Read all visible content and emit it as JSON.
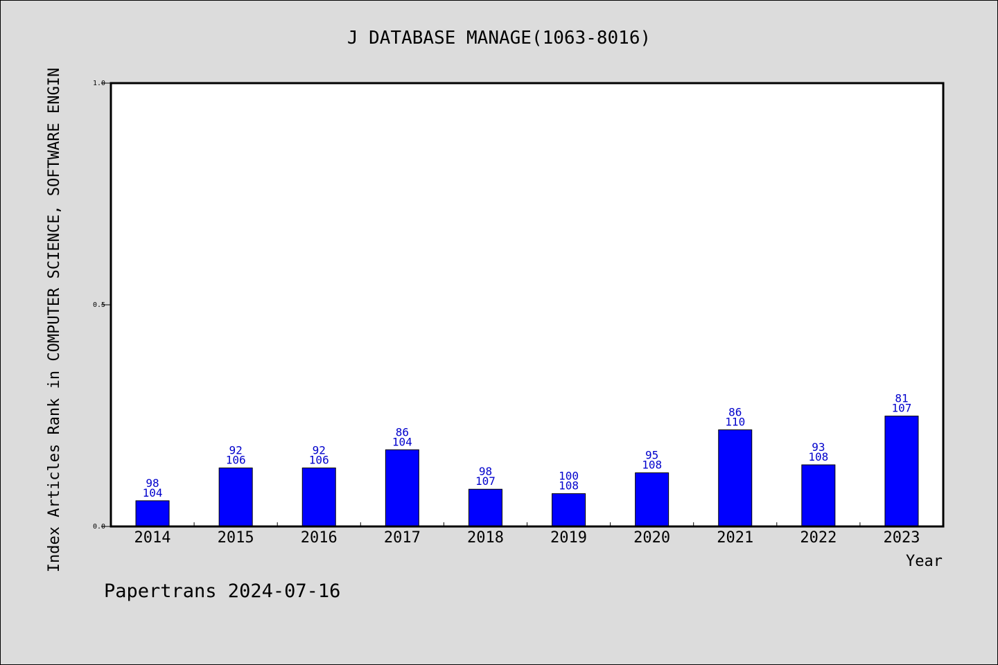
{
  "chart_data": {
    "type": "bar",
    "title": "J DATABASE MANAGE(1063-8016)",
    "xlabel": "Year",
    "ylabel": "Index Articles Rank in COMPUTER SCIENCE, SOFTWARE ENGIN",
    "ylim": [
      0.0,
      1.0
    ],
    "yticks": [
      "0.0",
      "0.5",
      "1.0"
    ],
    "categories": [
      "2014",
      "2015",
      "2016",
      "2017",
      "2018",
      "2019",
      "2020",
      "2021",
      "2022",
      "2023"
    ],
    "values": [
      0.058,
      0.132,
      0.132,
      0.173,
      0.084,
      0.074,
      0.121,
      0.218,
      0.139,
      0.249
    ],
    "labels_top": [
      "98",
      "92",
      "92",
      "86",
      "98",
      "100",
      "95",
      "86",
      "93",
      "81"
    ],
    "labels_bottom": [
      "104",
      "106",
      "106",
      "104",
      "107",
      "108",
      "108",
      "110",
      "108",
      "107"
    ],
    "bar_color": "#0000ff",
    "label_color": "#0000cc",
    "grid": false
  },
  "footer": "Papertrans 2024-07-16"
}
